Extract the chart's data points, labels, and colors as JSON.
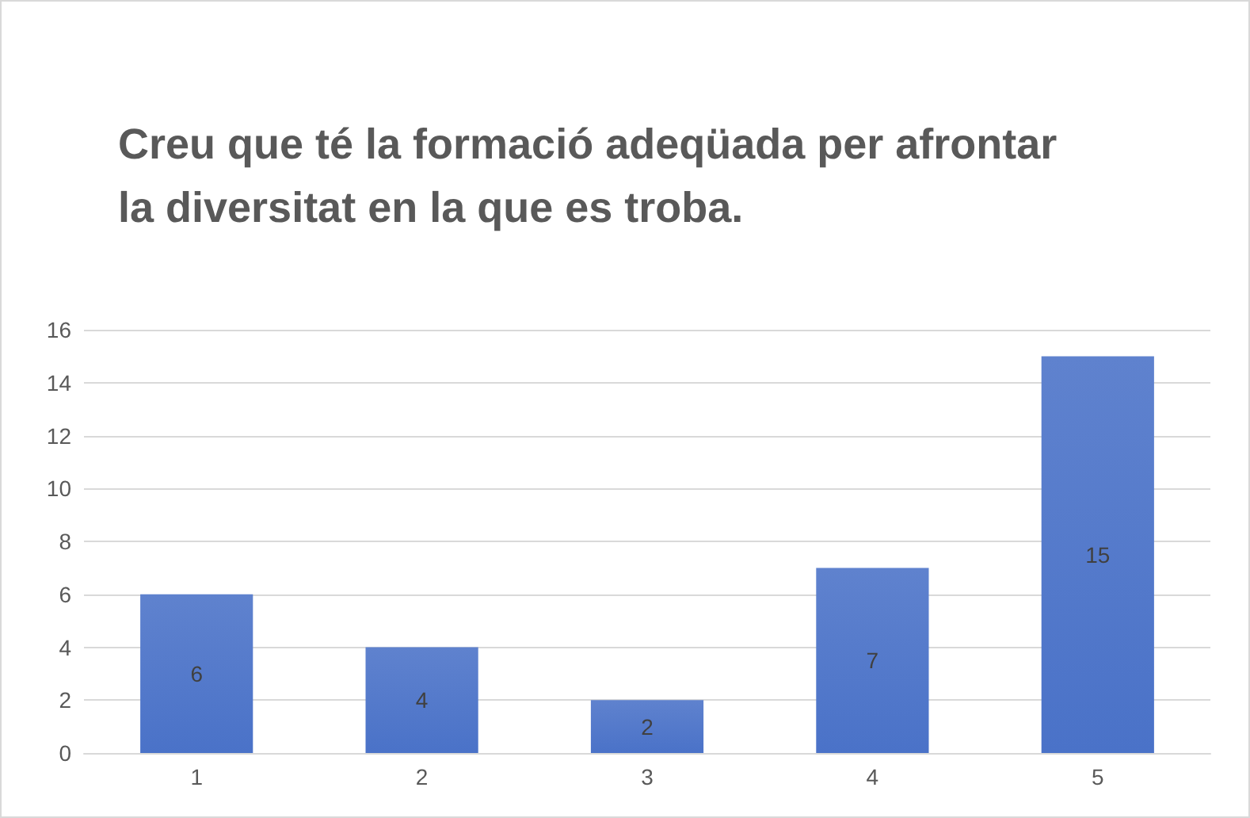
{
  "chart_data": {
    "type": "bar",
    "title": "Creu que té la formació adeqüada per afrontar la diversitat en la que es troba.",
    "categories": [
      "1",
      "2",
      "3",
      "4",
      "5"
    ],
    "values": [
      6,
      4,
      2,
      7,
      15
    ],
    "color": "#4a72c8",
    "ylim": [
      0,
      16
    ],
    "yticks": [
      0,
      2,
      4,
      6,
      8,
      10,
      12,
      14,
      16
    ],
    "grid": true,
    "data_labels": true
  }
}
